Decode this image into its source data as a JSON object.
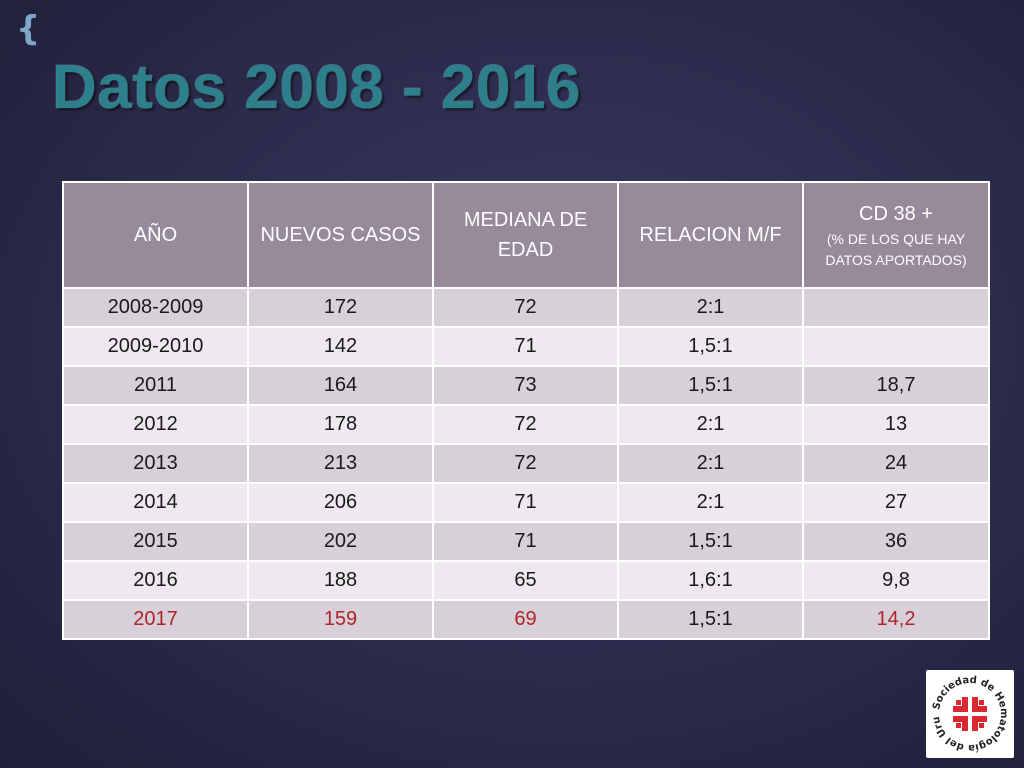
{
  "slide": {
    "title": "Datos 2008 - 2016"
  },
  "table": {
    "headers": {
      "year": "AÑO",
      "cases": "NUEVOS CASOS",
      "median_age": "MEDIANA DE EDAD",
      "ratio": "RELACION M/F",
      "cd38": "CD 38 +",
      "cd38_sub": "(% DE LOS QUE HAY DATOS APORTADOS)"
    },
    "rows": [
      {
        "year": "2008-2009",
        "cases": "172",
        "median_age": "72",
        "ratio": "2:1",
        "cd38": ""
      },
      {
        "year": "2009-2010",
        "cases": "142",
        "median_age": "71",
        "ratio": "1,5:1",
        "cd38": ""
      },
      {
        "year": "2011",
        "cases": "164",
        "median_age": "73",
        "ratio": "1,5:1",
        "cd38": "18,7"
      },
      {
        "year": "2012",
        "cases": "178",
        "median_age": "72",
        "ratio": "2:1",
        "cd38": "13"
      },
      {
        "year": "2013",
        "cases": "213",
        "median_age": "72",
        "ratio": "2:1",
        "cd38": "24"
      },
      {
        "year": "2014",
        "cases": "206",
        "median_age": "71",
        "ratio": "2:1",
        "cd38": "27"
      },
      {
        "year": "2015",
        "cases": "202",
        "median_age": "71",
        "ratio": "1,5:1",
        "cd38": "36"
      },
      {
        "year": "2016",
        "cases": "188",
        "median_age": "65",
        "ratio": "1,6:1",
        "cd38": "9,8"
      },
      {
        "year": "2017",
        "cases": "159",
        "median_age": "69",
        "ratio": "1,5:1",
        "cd38": "14,2"
      }
    ]
  },
  "logo": {
    "text": "Sociedad de Hematología del Uruguay",
    "accent_color": "#d9282f"
  },
  "colors": {
    "header_bg": "#978a9b",
    "row_odd": "#d8d0d9",
    "row_even": "#ede9ee",
    "highlight_text": "#b0232a",
    "title": "#2e7f8c"
  }
}
